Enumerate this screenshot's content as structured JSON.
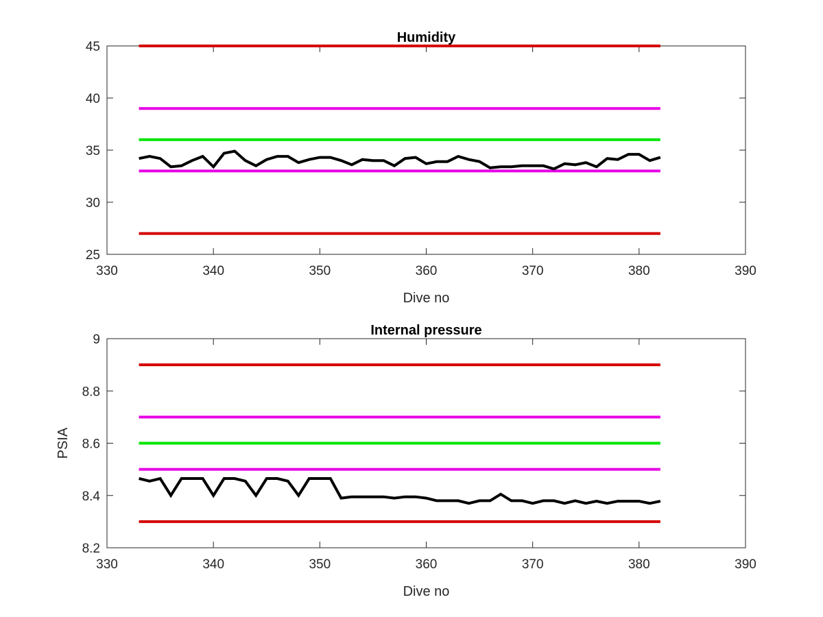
{
  "chart_data": [
    {
      "type": "line",
      "title": "Humidity",
      "xlabel": "Dive no",
      "ylabel": "",
      "xlim": [
        330,
        390
      ],
      "ylim": [
        25,
        45
      ],
      "xticks": [
        330,
        340,
        350,
        360,
        370,
        380,
        390
      ],
      "yticks": [
        25,
        30,
        35,
        40,
        45
      ],
      "grid": false,
      "legend": "none",
      "thresholds": [
        {
          "y": 45,
          "x": [
            333,
            382
          ],
          "color": "#d40000"
        },
        {
          "y": 39,
          "x": [
            333,
            382
          ],
          "color": "#e600e6"
        },
        {
          "y": 36,
          "x": [
            333,
            382
          ],
          "color": "#00e600"
        },
        {
          "y": 33,
          "x": [
            333,
            382
          ],
          "color": "#e600e6"
        },
        {
          "y": 27,
          "x": [
            333,
            382
          ],
          "color": "#d40000"
        }
      ],
      "series": [
        {
          "color": "#000000",
          "x": [
            333,
            334,
            335,
            336,
            337,
            338,
            339,
            340,
            341,
            342,
            343,
            344,
            345,
            346,
            347,
            348,
            349,
            350,
            351,
            352,
            353,
            354,
            355,
            356,
            357,
            358,
            359,
            360,
            361,
            362,
            363,
            364,
            365,
            366,
            367,
            368,
            369,
            370,
            371,
            372,
            373,
            374,
            375,
            376,
            377,
            378,
            379,
            380,
            381,
            382
          ],
          "y": [
            34.2,
            34.4,
            34.2,
            33.4,
            33.5,
            34.0,
            34.4,
            33.4,
            34.7,
            34.9,
            34.0,
            33.5,
            34.1,
            34.4,
            34.4,
            33.8,
            34.1,
            34.3,
            34.3,
            34.0,
            33.6,
            34.1,
            34.0,
            34.0,
            33.5,
            34.2,
            34.3,
            33.7,
            33.9,
            33.9,
            34.4,
            34.1,
            33.9,
            33.3,
            33.4,
            33.4,
            33.5,
            33.5,
            33.5,
            33.2,
            33.7,
            33.6,
            33.8,
            33.4,
            34.2,
            34.1,
            34.6,
            34.6,
            34.0,
            34.3
          ]
        }
      ]
    },
    {
      "type": "line",
      "title": "Internal pressure",
      "xlabel": "Dive no",
      "ylabel": "PSIA",
      "xlim": [
        330,
        390
      ],
      "ylim": [
        8.2,
        9
      ],
      "xticks": [
        330,
        340,
        350,
        360,
        370,
        380,
        390
      ],
      "yticks": [
        8.2,
        8.4,
        8.6,
        8.8,
        9
      ],
      "ytick_labels": [
        "8.2",
        "8.4",
        "8.6",
        "8.8",
        "9"
      ],
      "grid": false,
      "legend": "none",
      "thresholds": [
        {
          "y": 8.9,
          "x": [
            333,
            382
          ],
          "color": "#d40000"
        },
        {
          "y": 8.7,
          "x": [
            333,
            382
          ],
          "color": "#e600e6"
        },
        {
          "y": 8.6,
          "x": [
            333,
            382
          ],
          "color": "#00e600"
        },
        {
          "y": 8.5,
          "x": [
            333,
            382
          ],
          "color": "#e600e6"
        },
        {
          "y": 8.3,
          "x": [
            333,
            382
          ],
          "color": "#d40000"
        }
      ],
      "series": [
        {
          "color": "#000000",
          "x": [
            333,
            334,
            335,
            336,
            337,
            338,
            339,
            340,
            341,
            342,
            343,
            344,
            345,
            346,
            347,
            348,
            349,
            350,
            351,
            352,
            353,
            354,
            355,
            356,
            357,
            358,
            359,
            360,
            361,
            362,
            363,
            364,
            365,
            366,
            367,
            368,
            369,
            370,
            371,
            372,
            373,
            374,
            375,
            376,
            377,
            378,
            379,
            380,
            381,
            382
          ],
          "y": [
            8.465,
            8.455,
            8.465,
            8.4,
            8.465,
            8.465,
            8.465,
            8.4,
            8.465,
            8.465,
            8.455,
            8.4,
            8.465,
            8.465,
            8.455,
            8.4,
            8.465,
            8.465,
            8.465,
            8.39,
            8.395,
            8.395,
            8.395,
            8.395,
            8.39,
            8.395,
            8.395,
            8.39,
            8.38,
            8.38,
            8.38,
            8.37,
            8.38,
            8.38,
            8.405,
            8.38,
            8.38,
            8.37,
            8.38,
            8.38,
            8.37,
            8.38,
            8.37,
            8.378,
            8.37,
            8.378,
            8.378,
            8.378,
            8.37,
            8.378
          ]
        }
      ]
    }
  ]
}
